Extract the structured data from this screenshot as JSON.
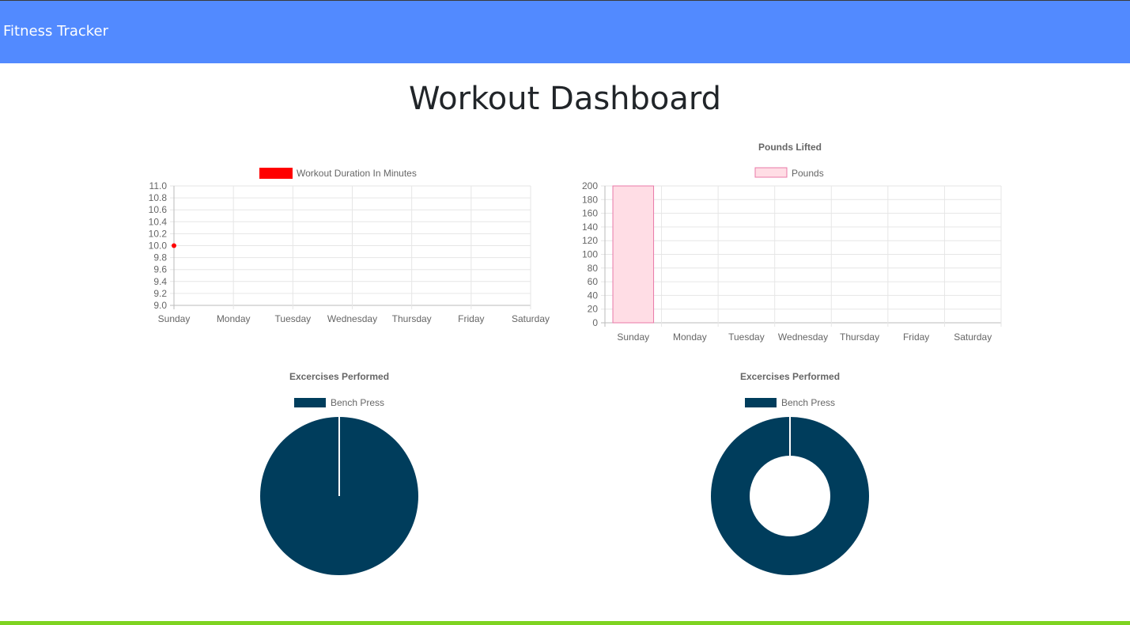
{
  "navbar": {
    "brand": "Fitness Tracker"
  },
  "page": {
    "title": "Workout Dashboard"
  },
  "colors": {
    "navbar": "#528aff",
    "footer": "#7ed321",
    "line": "#ff0000",
    "bar_fill": "#ffdde5",
    "bar_stroke": "#e879a8",
    "pie": "#003d5c"
  },
  "chart_data": [
    {
      "type": "line",
      "title": "",
      "categories": [
        "Sunday",
        "Monday",
        "Tuesday",
        "Wednesday",
        "Thursday",
        "Friday",
        "Saturday"
      ],
      "series": [
        {
          "name": "Workout Duration In Minutes",
          "values": [
            10,
            null,
            null,
            null,
            null,
            null,
            null
          ]
        }
      ],
      "ylim": [
        9.0,
        11.0
      ],
      "yticks": [
        "11.0",
        "10.8",
        "10.6",
        "10.4",
        "10.2",
        "10.0",
        "9.8",
        "9.6",
        "9.4",
        "9.2",
        "9.0"
      ],
      "legend": "top",
      "grid": true
    },
    {
      "type": "bar",
      "title": "Pounds Lifted",
      "categories": [
        "Sunday",
        "Monday",
        "Tuesday",
        "Wednesday",
        "Thursday",
        "Friday",
        "Saturday"
      ],
      "series": [
        {
          "name": "Pounds",
          "values": [
            200,
            0,
            0,
            0,
            0,
            0,
            0
          ]
        }
      ],
      "ylim": [
        0,
        200
      ],
      "yticks": [
        "200",
        "180",
        "160",
        "140",
        "120",
        "100",
        "80",
        "60",
        "40",
        "20",
        "0"
      ],
      "legend": "top",
      "grid": true
    },
    {
      "type": "pie",
      "title": "Excercises Performed",
      "labels": [
        "Bench Press"
      ],
      "values": [
        1
      ],
      "legend": "top"
    },
    {
      "type": "doughnut",
      "title": "Excercises Performed",
      "labels": [
        "Bench Press"
      ],
      "values": [
        1
      ],
      "legend": "top"
    }
  ]
}
